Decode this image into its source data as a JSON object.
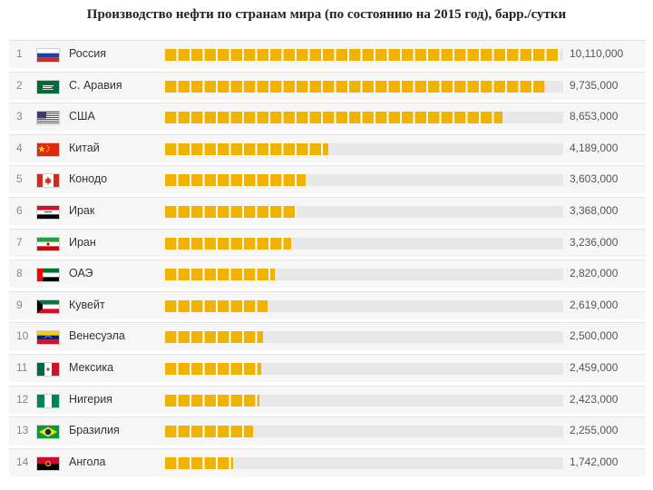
{
  "chart_data": {
    "type": "bar",
    "orientation": "horizontal",
    "title": "Производство нефти по странам мира (по состоянию на 2015 год), барр./сутки",
    "xlim": [
      0,
      10200000
    ],
    "rows": [
      {
        "rank": "1",
        "country": "Россия",
        "value_label": "10,110,000",
        "value": 10110000,
        "flag": "russia-flag-icon",
        "colors": [
          "#ffffff",
          "#1c3faa",
          "#d52b1e"
        ]
      },
      {
        "rank": "2",
        "country": "С. Аравия",
        "value_label": "9,735,000",
        "value": 9735000,
        "flag": "saudi-arabia-flag-icon",
        "colors": [
          "#006c35",
          "#ffffff"
        ]
      },
      {
        "rank": "3",
        "country": "США",
        "value_label": "8,653,000",
        "value": 8653000,
        "flag": "usa-flag-icon",
        "colors": [
          "#b22234",
          "#ffffff",
          "#3c3b6e"
        ]
      },
      {
        "rank": "4",
        "country": "Китай",
        "value_label": "4,189,000",
        "value": 4189000,
        "flag": "china-flag-icon",
        "colors": [
          "#de2910",
          "#ffde00"
        ]
      },
      {
        "rank": "5",
        "country": "Конодо",
        "value_label": "3,603,000",
        "value": 3603000,
        "flag": "canada-flag-icon",
        "colors": [
          "#d52b1e",
          "#ffffff"
        ]
      },
      {
        "rank": "6",
        "country": "Ирак",
        "value_label": "3,368,000",
        "value": 3368000,
        "flag": "iraq-flag-icon",
        "colors": [
          "#ce1126",
          "#ffffff",
          "#000000",
          "#007a3d"
        ]
      },
      {
        "rank": "7",
        "country": "Иран",
        "value_label": "3,236,000",
        "value": 3236000,
        "flag": "iran-flag-icon",
        "colors": [
          "#239f40",
          "#ffffff",
          "#da0000"
        ]
      },
      {
        "rank": "8",
        "country": "ОАЭ",
        "value_label": "2,820,000",
        "value": 2820000,
        "flag": "uae-flag-icon",
        "colors": [
          "#ff0000",
          "#00732f",
          "#ffffff",
          "#000000"
        ]
      },
      {
        "rank": "9",
        "country": "Кувейт",
        "value_label": "2,619,000",
        "value": 2619000,
        "flag": "kuwait-flag-icon",
        "colors": [
          "#000000",
          "#007a3d",
          "#ffffff",
          "#ce1126"
        ]
      },
      {
        "rank": "10",
        "country": "Венесуэла",
        "value_label": "2,500,000",
        "value": 2500000,
        "flag": "venezuela-flag-icon",
        "colors": [
          "#ffcc00",
          "#00247d",
          "#cf142b"
        ]
      },
      {
        "rank": "11",
        "country": "Мексика",
        "value_label": "2,459,000",
        "value": 2459000,
        "flag": "mexico-flag-icon",
        "colors": [
          "#006847",
          "#ffffff",
          "#ce1126"
        ]
      },
      {
        "rank": "12",
        "country": "Нигерия",
        "value_label": "2,423,000",
        "value": 2423000,
        "flag": "nigeria-flag-icon",
        "colors": [
          "#008751",
          "#ffffff"
        ]
      },
      {
        "rank": "13",
        "country": "Бразилия",
        "value_label": "2,255,000",
        "value": 2255000,
        "flag": "brazil-flag-icon",
        "colors": [
          "#009c3b",
          "#ffdf00",
          "#002776"
        ]
      },
      {
        "rank": "14",
        "country": "Ангола",
        "value_label": "1,742,000",
        "value": 1742000,
        "flag": "angola-flag-icon",
        "colors": [
          "#cc092f",
          "#000000",
          "#ffcb00"
        ]
      }
    ]
  }
}
